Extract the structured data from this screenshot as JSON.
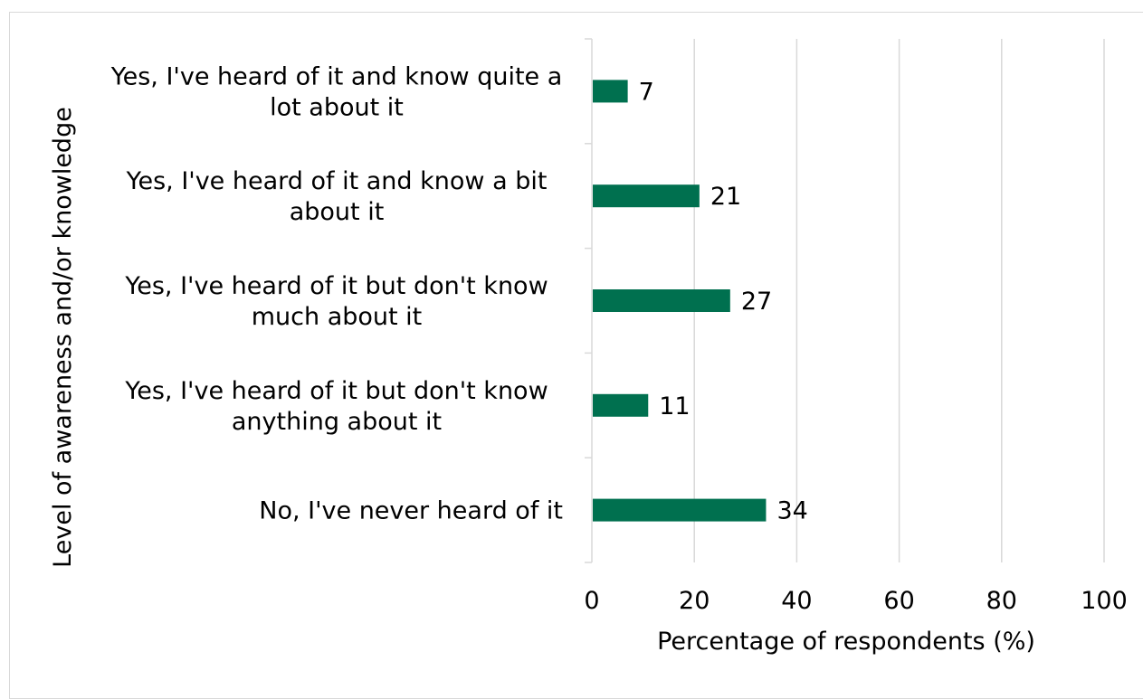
{
  "chart_data": {
    "type": "bar",
    "orientation": "horizontal",
    "categories": [
      [
        "Yes, I've heard of it and know quite a",
        "lot about it"
      ],
      [
        "Yes, I've heard of it and know a bit",
        "about it"
      ],
      [
        "Yes, I've heard of it but don't know",
        "much about it"
      ],
      [
        "Yes, I've heard of it but don't know",
        "anything about it"
      ],
      [
        "No, I've never heard of it"
      ]
    ],
    "values": [
      7,
      21,
      27,
      11,
      34
    ],
    "data_labels": [
      "7",
      "21",
      "27",
      "11",
      "34"
    ],
    "xlabel": "Percentage of respondents (%)",
    "ylabel": "Level of awareness and/or knowledge",
    "xlim": [
      0,
      100
    ],
    "xticks": [
      0,
      20,
      40,
      60,
      80,
      100
    ],
    "xtick_labels": [
      "0",
      "20",
      "40",
      "60",
      "80",
      "100"
    ],
    "grid": "vertical",
    "legend": "none",
    "bar_color": "#00704f",
    "grid_color": "#d9d9d9"
  }
}
